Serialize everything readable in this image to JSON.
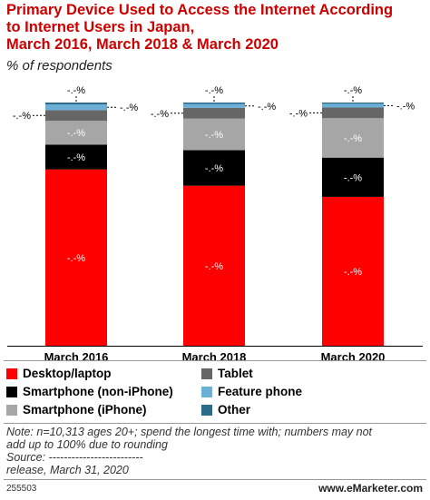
{
  "title": {
    "line1": "Primary Device Used to Access the Internet According",
    "line2": "to Internet Users in Japan,",
    "line3": "March 2016, March 2018 & March 2020"
  },
  "subtitle": "% of respondents",
  "colors": {
    "desktop": "#ff0000",
    "smartphone_non_iphone": "#000000",
    "smartphone_iphone": "#a6a6a6",
    "tablet": "#666666",
    "feature_phone": "#6baed6",
    "other": "#2a6b8a"
  },
  "chart_data": {
    "type": "bar",
    "stacked": true,
    "categories": [
      "March 2016",
      "March 2018",
      "March 2020"
    ],
    "value_label": "-.-%",
    "series": [
      {
        "name": "Desktop/laptop",
        "color_key": "desktop",
        "values": [
          72.5,
          65.8,
          60.0
        ]
      },
      {
        "name": "Smartphone (non-iPhone)",
        "color_key": "smartphone_non_iphone",
        "values": [
          10.2,
          14.6,
          15.8
        ]
      },
      {
        "name": "Smartphone (iPhone)",
        "color_key": "smartphone_iphone",
        "values": [
          9.8,
          13.0,
          15.9
        ]
      },
      {
        "name": "Tablet",
        "color_key": "tablet",
        "values": [
          4.4,
          4.4,
          4.3
        ]
      },
      {
        "name": "Feature phone",
        "color_key": "feature_phone",
        "values": [
          2.3,
          1.6,
          1.5
        ]
      },
      {
        "name": "Other",
        "color_key": "other",
        "values": [
          0.8,
          0.6,
          0.5
        ]
      }
    ]
  },
  "legend": [
    {
      "label": "Desktop/laptop",
      "color_key": "desktop"
    },
    {
      "label": "Smartphone (non-iPhone)",
      "color_key": "smartphone_non_iphone"
    },
    {
      "label": "Smartphone (iPhone)",
      "color_key": "smartphone_iphone"
    },
    {
      "label": "Tablet",
      "color_key": "tablet"
    },
    {
      "label": "Feature phone",
      "color_key": "feature_phone"
    },
    {
      "label": "Other",
      "color_key": "other"
    }
  ],
  "note": {
    "line1": "Note: n=10,313 ages 20+; spend the longest time with; numbers may not",
    "line2": "add up to 100% due to rounding",
    "line3": "Source: -------------------------",
    "line4": "release, March 31, 2020"
  },
  "footer": {
    "id": "255503",
    "brand": "www.eMarketer.com"
  }
}
